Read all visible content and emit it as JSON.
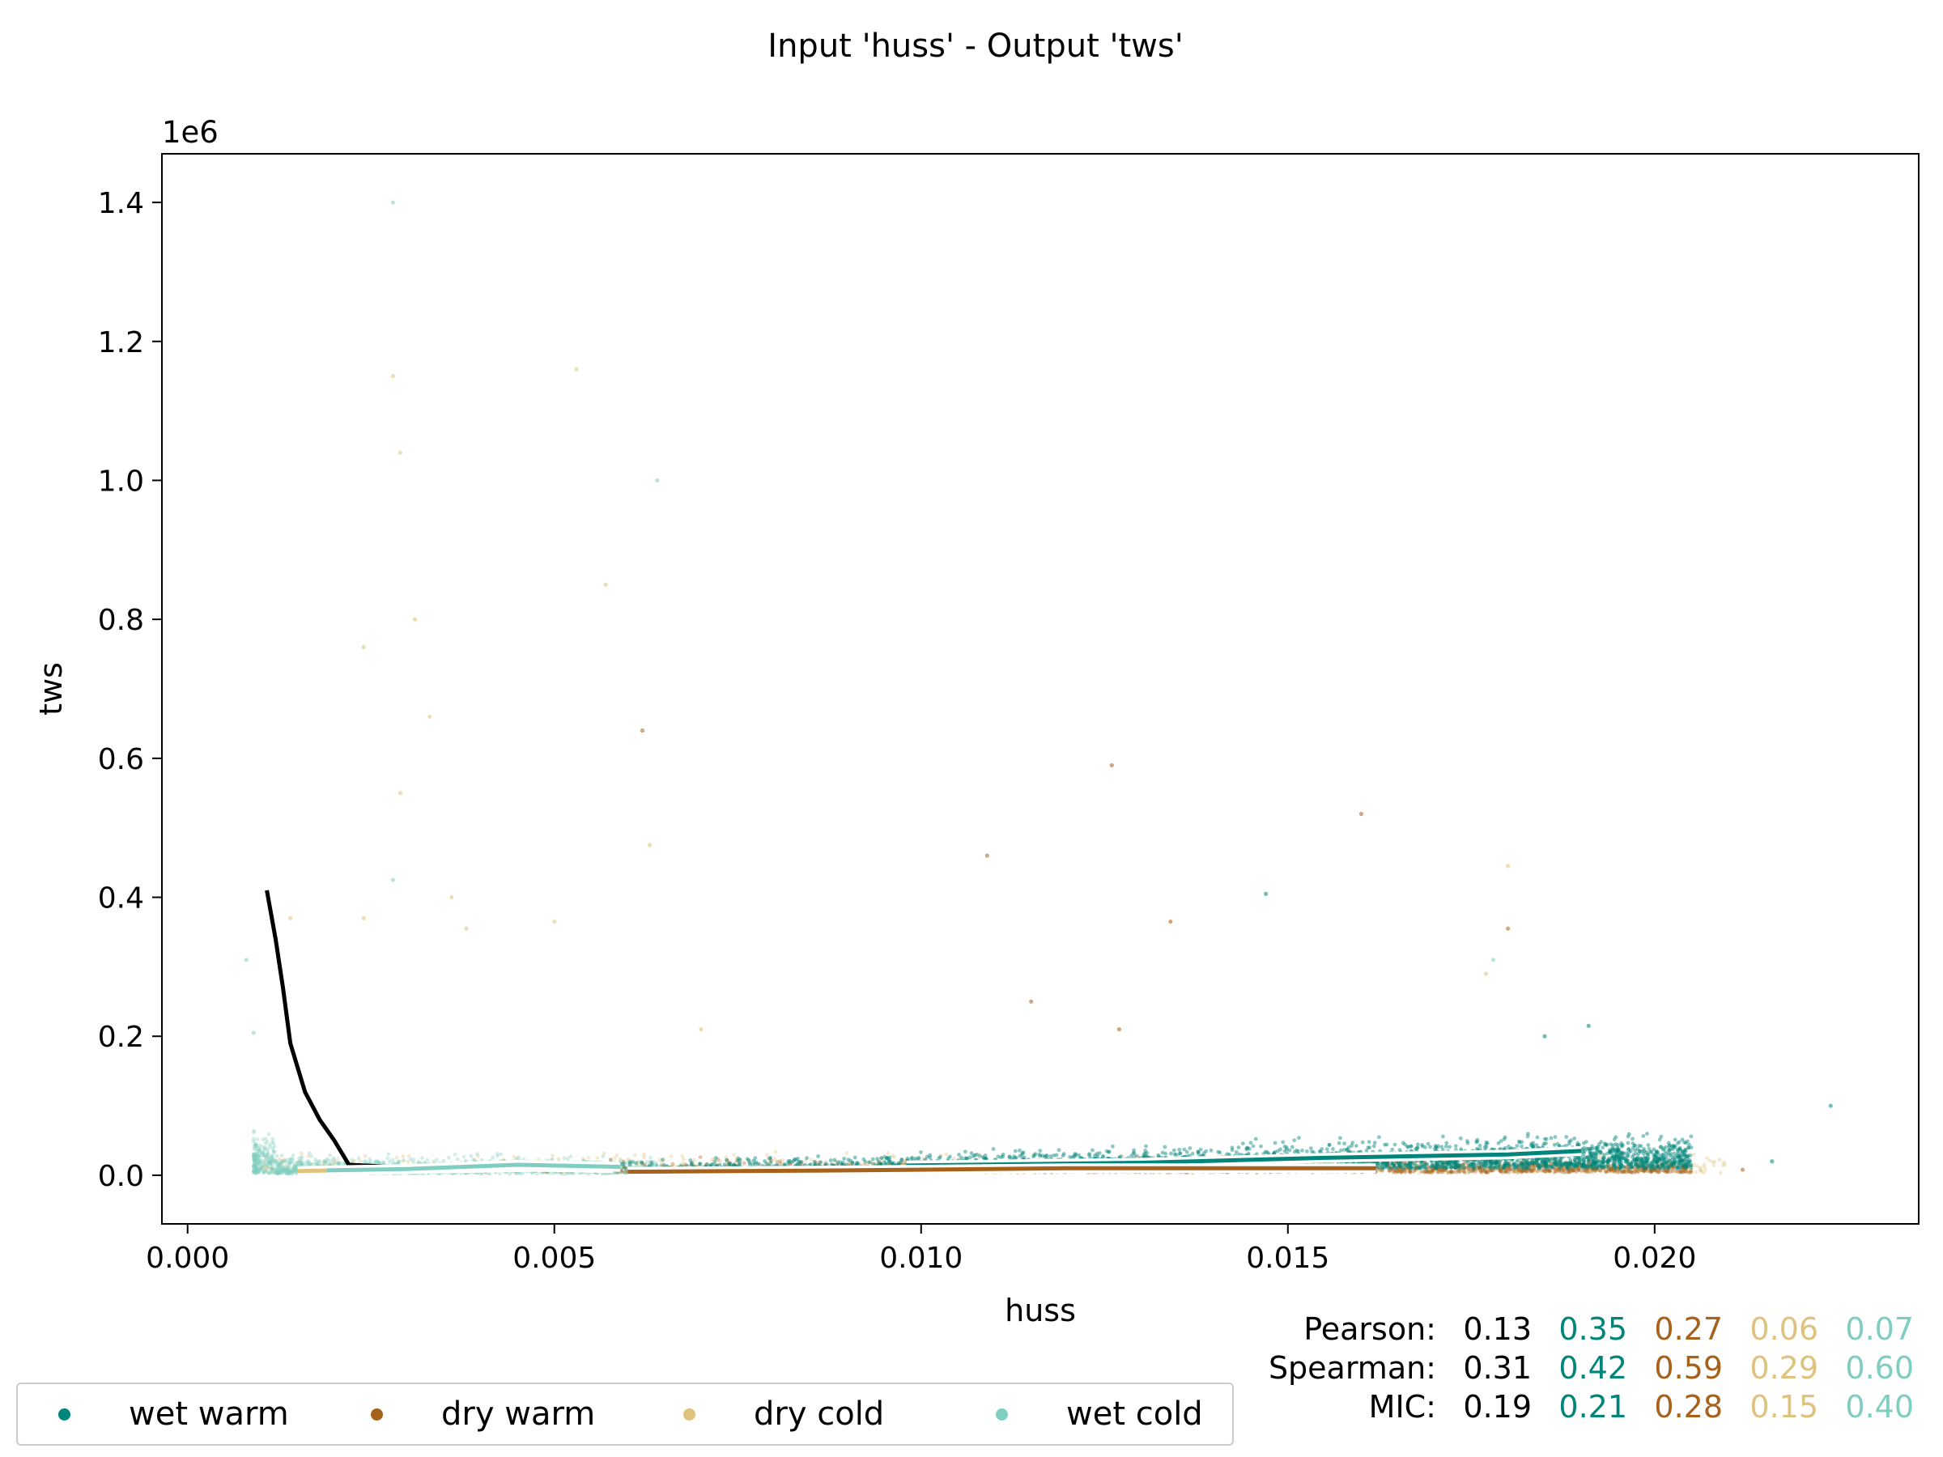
{
  "chart_data": {
    "type": "scatter",
    "title": "Input 'huss' - Output 'tws'",
    "xlabel": "huss",
    "ylabel": "tws",
    "y_offset_label": "1e6",
    "xlim": [
      -0.00035,
      0.0236
    ],
    "ylim": [
      -70000,
      1470000
    ],
    "x_ticks": [
      0.0,
      0.005,
      0.01,
      0.015,
      0.02
    ],
    "x_tick_labels": [
      "0.000",
      "0.005",
      "0.010",
      "0.015",
      "0.020"
    ],
    "y_ticks": [
      0,
      200000,
      400000,
      600000,
      800000,
      1000000,
      1200000,
      1400000
    ],
    "y_tick_labels": [
      "0.0",
      "0.2",
      "0.4",
      "0.6",
      "0.8",
      "1.0",
      "1.2",
      "1.4"
    ],
    "grid": false,
    "legend_position": "bottom-left",
    "series": [
      {
        "name": "wet warm",
        "color": "#01857a",
        "x_range": [
          0.0045,
          0.0205
        ],
        "y_typical": [
          0,
          60000
        ]
      },
      {
        "name": "dry warm",
        "color": "#a6611a",
        "x_range": [
          0.004,
          0.0205
        ],
        "y_typical": [
          0,
          30000
        ]
      },
      {
        "name": "dry cold",
        "color": "#dfc27d",
        "x_range": [
          0.001,
          0.021
        ],
        "y_typical": [
          0,
          40000
        ]
      },
      {
        "name": "wet cold",
        "color": "#80cdc1",
        "x_range": [
          0.0009,
          0.0065
        ],
        "y_typical": [
          0,
          40000
        ]
      }
    ],
    "outliers": [
      {
        "x": 0.0028,
        "y": 1400000,
        "series": "wet cold"
      },
      {
        "x": 0.0028,
        "y": 1150000,
        "series": "dry cold"
      },
      {
        "x": 0.0053,
        "y": 1160000,
        "series": "dry cold"
      },
      {
        "x": 0.0029,
        "y": 1040000,
        "series": "dry cold"
      },
      {
        "x": 0.0064,
        "y": 1000000,
        "series": "wet cold"
      },
      {
        "x": 0.0057,
        "y": 850000,
        "series": "dry cold"
      },
      {
        "x": 0.0031,
        "y": 800000,
        "series": "dry cold"
      },
      {
        "x": 0.0024,
        "y": 760000,
        "series": "dry cold"
      },
      {
        "x": 0.0033,
        "y": 660000,
        "series": "dry cold"
      },
      {
        "x": 0.0062,
        "y": 640000,
        "series": "dry warm"
      },
      {
        "x": 0.0126,
        "y": 590000,
        "series": "dry warm"
      },
      {
        "x": 0.0029,
        "y": 550000,
        "series": "dry cold"
      },
      {
        "x": 0.016,
        "y": 520000,
        "series": "dry warm"
      },
      {
        "x": 0.0063,
        "y": 475000,
        "series": "dry cold"
      },
      {
        "x": 0.0109,
        "y": 460000,
        "series": "dry warm"
      },
      {
        "x": 0.018,
        "y": 445000,
        "series": "dry cold"
      },
      {
        "x": 0.0028,
        "y": 425000,
        "series": "wet cold"
      },
      {
        "x": 0.0147,
        "y": 405000,
        "series": "wet warm"
      },
      {
        "x": 0.0036,
        "y": 400000,
        "series": "dry cold"
      },
      {
        "x": 0.0014,
        "y": 370000,
        "series": "dry cold"
      },
      {
        "x": 0.005,
        "y": 365000,
        "series": "dry cold"
      },
      {
        "x": 0.0024,
        "y": 370000,
        "series": "dry cold"
      },
      {
        "x": 0.0134,
        "y": 365000,
        "series": "dry warm"
      },
      {
        "x": 0.018,
        "y": 355000,
        "series": "dry warm"
      },
      {
        "x": 0.0038,
        "y": 355000,
        "series": "dry cold"
      },
      {
        "x": 0.0008,
        "y": 310000,
        "series": "wet cold"
      },
      {
        "x": 0.0178,
        "y": 310000,
        "series": "wet cold"
      },
      {
        "x": 0.0177,
        "y": 290000,
        "series": "dry cold"
      },
      {
        "x": 0.0115,
        "y": 250000,
        "series": "dry warm"
      },
      {
        "x": 0.0127,
        "y": 210000,
        "series": "dry warm"
      },
      {
        "x": 0.007,
        "y": 210000,
        "series": "dry cold"
      },
      {
        "x": 0.0185,
        "y": 200000,
        "series": "wet warm"
      },
      {
        "x": 0.0191,
        "y": 215000,
        "series": "wet warm"
      },
      {
        "x": 0.0009,
        "y": 205000,
        "series": "wet cold"
      },
      {
        "x": 0.0224,
        "y": 100000,
        "series": "wet warm"
      },
      {
        "x": 0.0216,
        "y": 20000,
        "series": "wet warm"
      },
      {
        "x": 0.0212,
        "y": 8000,
        "series": "dry warm"
      }
    ],
    "trend_lines": [
      {
        "name": "overall",
        "color": "#000000",
        "points": [
          [
            0.00108,
            410000
          ],
          [
            0.0012,
            340000
          ],
          [
            0.0013,
            270000
          ],
          [
            0.0014,
            190000
          ],
          [
            0.0016,
            120000
          ],
          [
            0.0018,
            80000
          ],
          [
            0.002,
            50000
          ],
          [
            0.0022,
            15000
          ],
          [
            0.0028,
            12000
          ]
        ]
      },
      {
        "name": "wet warm",
        "color": "#01857a",
        "points": [
          [
            0.0098,
            14000
          ],
          [
            0.013,
            18000
          ],
          [
            0.0155,
            25000
          ],
          [
            0.017,
            28000
          ],
          [
            0.018,
            30000
          ],
          [
            0.019,
            35000
          ]
        ]
      },
      {
        "name": "dry warm",
        "color": "#a6611a",
        "points": [
          [
            0.006,
            5000
          ],
          [
            0.009,
            7000
          ],
          [
            0.012,
            10000
          ],
          [
            0.0162,
            10000
          ]
        ]
      },
      {
        "name": "dry cold",
        "color": "#dfc27d",
        "points": [
          [
            0.0015,
            6000
          ],
          [
            0.003,
            9000
          ],
          [
            0.0048,
            12000
          ],
          [
            0.0058,
            10000
          ]
        ]
      },
      {
        "name": "wet cold",
        "color": "#80cdc1",
        "points": [
          [
            0.0019,
            7000
          ],
          [
            0.003,
            9000
          ],
          [
            0.0045,
            15000
          ],
          [
            0.0059,
            12000
          ]
        ]
      }
    ],
    "statistics": {
      "Pearson": [
        "0.13",
        "0.35",
        "0.27",
        "0.06",
        "0.07"
      ],
      "Spearman": [
        "0.31",
        "0.42",
        "0.59",
        "0.29",
        "0.60"
      ],
      "MIC": [
        "0.19",
        "0.21",
        "0.28",
        "0.15",
        "0.40"
      ]
    },
    "stat_colors": [
      "#000000",
      "#01857a",
      "#a6611a",
      "#dfc27d",
      "#80cdc1"
    ]
  },
  "legend": {
    "items": [
      {
        "label": "wet warm",
        "color": "#01857a"
      },
      {
        "label": "dry warm",
        "color": "#a6611a"
      },
      {
        "label": "dry cold",
        "color": "#dfc27d"
      },
      {
        "label": "wet cold",
        "color": "#80cdc1"
      }
    ]
  },
  "stats_labels": {
    "pearson": "Pearson:",
    "spearman": "Spearman:",
    "mic": "MIC:"
  }
}
